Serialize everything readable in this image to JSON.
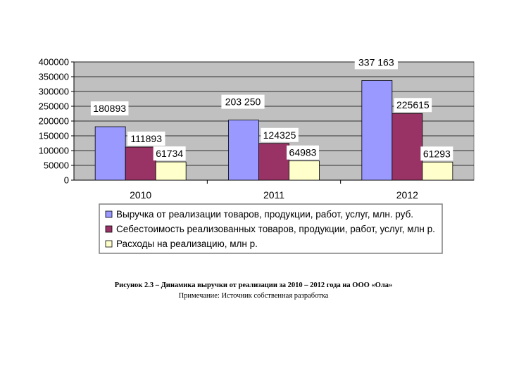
{
  "chart_data": {
    "type": "bar",
    "categories": [
      "2010",
      "2011",
      "2012"
    ],
    "series": [
      {
        "name": "Выручка от реализации товаров, продукции, работ, услуг, млн. руб.",
        "values": [
          180893,
          203250,
          337163
        ],
        "labels": [
          "180893",
          "203 250",
          "337 163"
        ],
        "color": "#9999ff"
      },
      {
        "name": "Себестоимость реализованных товаров, продукции, работ, услуг, млн р.",
        "values": [
          111893,
          124325,
          225615
        ],
        "labels": [
          "111893",
          "124325",
          "225615"
        ],
        "color": "#993366"
      },
      {
        "name": "Расходы на реализацию, млн р.",
        "values": [
          61734,
          64983,
          61293
        ],
        "labels": [
          "61734",
          "64983",
          "61293"
        ],
        "color": "#ffffcc"
      }
    ],
    "ylim": [
      0,
      400000
    ],
    "yticks": [
      "0",
      "50000",
      "100000",
      "150000",
      "200000",
      "250000",
      "300000",
      "350000",
      "400000"
    ],
    "grid": true,
    "plot_background": "#c0c0c0",
    "legend_position": "bottom"
  },
  "caption": {
    "title": "Рисунок 2.3 – Динамика выручки от реализации за 2010 – 2012 года на ООО «Ола»",
    "note": "Примечание: Источник собственная разработка"
  }
}
